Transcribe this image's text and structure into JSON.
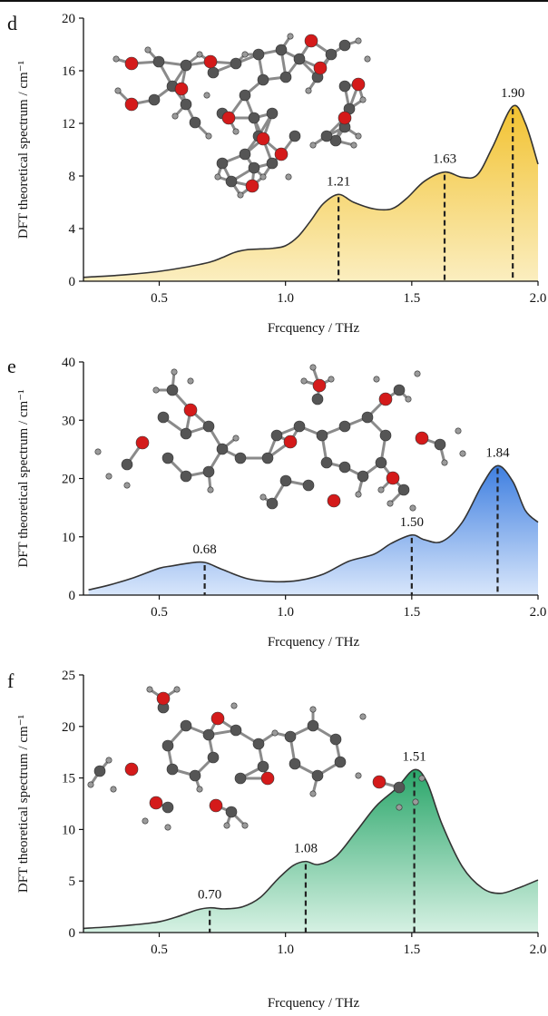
{
  "chart_data": [
    {
      "type": "area",
      "panel": "d",
      "ylabel": "DFT theoretical spectrum / cm⁻¹",
      "xlabel": "Frcquency / THz",
      "xlim": [
        0.2,
        2.0
      ],
      "ylim": [
        0,
        20
      ],
      "xticks": [
        0.5,
        1.0,
        1.5,
        2.0
      ],
      "xtick_labels": [
        "0.5",
        "1.0",
        "1.5",
        "2.0"
      ],
      "yticks": [
        0,
        4,
        8,
        12,
        16,
        20
      ],
      "ytick_labels": [
        "0",
        "4",
        "8",
        "12",
        "16",
        "20"
      ],
      "color": "#f2c230",
      "color_light": "#fbeec0",
      "x": [
        0.2,
        0.3,
        0.4,
        0.5,
        0.6,
        0.7,
        0.75,
        0.8,
        0.85,
        0.9,
        0.95,
        1.0,
        1.05,
        1.1,
        1.15,
        1.21,
        1.27,
        1.35,
        1.42,
        1.48,
        1.55,
        1.63,
        1.7,
        1.76,
        1.82,
        1.9,
        1.95,
        2.0
      ],
      "y": [
        0.3,
        0.4,
        0.55,
        0.75,
        1.05,
        1.45,
        1.8,
        2.2,
        2.4,
        2.45,
        2.5,
        2.7,
        3.4,
        4.6,
        5.9,
        6.6,
        6.0,
        5.5,
        5.5,
        6.3,
        7.6,
        8.3,
        7.9,
        8.1,
        10.2,
        13.3,
        12.0,
        8.9
      ],
      "peaks": [
        {
          "x": 1.21,
          "y": 6.6,
          "label": "1.21"
        },
        {
          "x": 1.63,
          "y": 8.3,
          "label": "1.63"
        },
        {
          "x": 1.9,
          "y": 13.3,
          "label": "1.90"
        }
      ]
    },
    {
      "type": "area",
      "panel": "e",
      "ylabel": "DFT theoretical spectrum / cm⁻¹",
      "xlabel": "Frcquency / THz",
      "xlim": [
        0.2,
        2.0
      ],
      "ylim": [
        0,
        40
      ],
      "xticks": [
        0.5,
        1.0,
        1.5,
        2.0
      ],
      "xtick_labels": [
        "0.5",
        "1.0",
        "1.5",
        "2.0"
      ],
      "yticks": [
        0,
        10,
        20,
        30,
        40
      ],
      "ytick_labels": [
        "0",
        "10",
        "20",
        "30",
        "40"
      ],
      "color": "#3f7fe0",
      "color_light": "#d8e6fb",
      "x": [
        0.22,
        0.3,
        0.4,
        0.5,
        0.55,
        0.62,
        0.68,
        0.75,
        0.85,
        0.95,
        1.05,
        1.15,
        1.25,
        1.35,
        1.42,
        1.5,
        1.55,
        1.62,
        1.7,
        1.78,
        1.84,
        1.9,
        1.95,
        2.0
      ],
      "y": [
        0.9,
        1.7,
        3.0,
        4.6,
        5.0,
        5.5,
        5.6,
        4.4,
        2.8,
        2.3,
        2.5,
        3.6,
        5.8,
        7.0,
        8.9,
        10.3,
        9.5,
        9.2,
        12.5,
        19.0,
        22.2,
        19.5,
        14.5,
        12.5
      ],
      "peaks": [
        {
          "x": 0.68,
          "y": 5.6,
          "label": "0.68"
        },
        {
          "x": 1.5,
          "y": 10.3,
          "label": "1.50"
        },
        {
          "x": 1.84,
          "y": 22.2,
          "label": "1.84"
        }
      ]
    },
    {
      "type": "area",
      "panel": "f",
      "ylabel": "DFT theoretical spectrum / cm⁻¹",
      "xlabel": "Frcquency / THz",
      "xlim": [
        0.2,
        2.0
      ],
      "ylim": [
        0,
        25
      ],
      "xticks": [
        0.5,
        1.0,
        1.5,
        2.0
      ],
      "xtick_labels": [
        "0.5",
        "1.0",
        "1.5",
        "2.0"
      ],
      "yticks": [
        0,
        5,
        10,
        15,
        20,
        25
      ],
      "ytick_labels": [
        "0",
        "5",
        "10",
        "15",
        "20",
        "25"
      ],
      "color": "#2aa66a",
      "color_light": "#d6f1e3",
      "x": [
        0.2,
        0.3,
        0.4,
        0.5,
        0.58,
        0.65,
        0.7,
        0.76,
        0.83,
        0.9,
        0.97,
        1.03,
        1.08,
        1.13,
        1.2,
        1.28,
        1.36,
        1.44,
        1.51,
        1.56,
        1.62,
        1.7,
        1.78,
        1.85,
        1.92,
        2.0
      ],
      "y": [
        0.4,
        0.55,
        0.75,
        1.05,
        1.6,
        2.2,
        2.4,
        2.3,
        2.5,
        3.4,
        5.2,
        6.5,
        6.9,
        6.6,
        7.4,
        9.8,
        12.3,
        14.0,
        15.8,
        14.6,
        10.5,
        6.4,
        4.3,
        3.8,
        4.3,
        5.1
      ],
      "peaks": [
        {
          "x": 0.7,
          "y": 2.4,
          "label": "0.70"
        },
        {
          "x": 1.08,
          "y": 6.9,
          "label": "1.08"
        },
        {
          "x": 1.51,
          "y": 15.8,
          "label": "1.51"
        }
      ]
    }
  ],
  "molecule_colors": {
    "carbon": "#555555",
    "oxygen": "#d41a1a",
    "hydrogen": "#9a9a9a"
  }
}
